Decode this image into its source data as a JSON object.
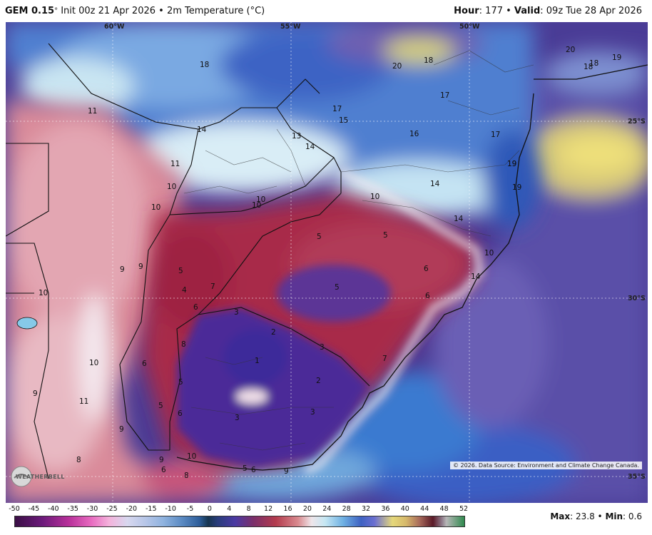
{
  "header": {
    "model": "GEM 0.15",
    "model_suffix": "°",
    "init": " Init 00z 21 Apr 2026",
    "sep": " • ",
    "field": "2m Temperature (°C)",
    "hour_label": "Hour",
    "hour_value": ": 177",
    "valid_label": "Valid",
    "valid_value": ": 09z Tue 28 Apr 2026"
  },
  "map": {
    "coord_labels": [
      "60°W",
      "55°W",
      "50°W",
      "25°S",
      "30°S",
      "35°S"
    ],
    "temperature_labels": [
      "18",
      "11",
      "14",
      "13",
      "14",
      "17",
      "15",
      "16",
      "17",
      "17",
      "19",
      "20",
      "18",
      "20",
      "18",
      "19",
      "18",
      "11",
      "10",
      "10",
      "10",
      "10",
      "10",
      "14",
      "14",
      "19",
      "19",
      "10",
      "14",
      "9",
      "9",
      "5",
      "4",
      "7",
      "6",
      "5",
      "5",
      "5",
      "6",
      "6",
      "10",
      "3",
      "2",
      "3",
      "8",
      "6",
      "1",
      "2",
      "7",
      "5",
      "5",
      "6",
      "3",
      "3",
      "11",
      "9",
      "9",
      "8",
      "9",
      "6",
      "8",
      "10",
      "5",
      "6",
      "9",
      "10"
    ],
    "colors": {
      "ocean_deep": "#4a3c96",
      "ocean_mid": "#3a64c4",
      "cold_core": "#4b2a98",
      "warm_red": "#b02d4a",
      "pink": "#d98a9a",
      "pale": "#f1e6ee",
      "light_blue": "#a9d6ee",
      "yellow": "#e8e07a"
    },
    "credit": "© 2026. Data Source: Environment and Climate Change Canada.",
    "logo_text": "WEATHERBELL"
  },
  "legend": {
    "ticks": [
      "-50",
      "-45",
      "-40",
      "-35",
      "-30",
      "-25",
      "-20",
      "-15",
      "-10",
      "-5",
      "0",
      "4",
      "8",
      "12",
      "16",
      "20",
      "24",
      "28",
      "32",
      "36",
      "40",
      "44",
      "48",
      "52"
    ],
    "max_label": "Max",
    "max_value": ": 23.8",
    "sep": " • ",
    "min_label": "Min",
    "min_value": ": 0.6"
  }
}
